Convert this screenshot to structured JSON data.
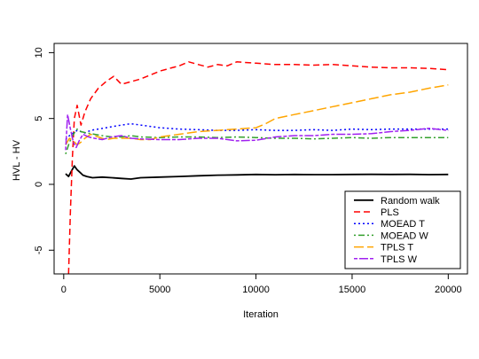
{
  "chart_data": {
    "type": "line",
    "title": "",
    "xlabel": "Iteration",
    "ylabel": "HVL - HV",
    "xlim": [
      -500,
      21000
    ],
    "ylim": [
      -6.8,
      10.7
    ],
    "x_ticks": [
      0,
      5000,
      10000,
      15000,
      20000
    ],
    "y_ticks": [
      -5,
      0,
      5,
      10
    ],
    "legend_position": "bottom-right",
    "series": [
      {
        "name": "Random walk",
        "color": "#000000",
        "dash": "solid",
        "x": [
          100,
          250,
          400,
          550,
          700,
          850,
          1000,
          1200,
          1500,
          2000,
          2500,
          3000,
          3500,
          4000,
          5000,
          6000,
          7000,
          8000,
          9000,
          10000,
          11000,
          12000,
          13000,
          14000,
          15000,
          16000,
          17000,
          18000,
          19000,
          20000
        ],
        "y": [
          0.8,
          0.6,
          1.0,
          1.4,
          1.1,
          0.9,
          0.7,
          0.6,
          0.5,
          0.55,
          0.5,
          0.45,
          0.4,
          0.5,
          0.55,
          0.6,
          0.65,
          0.7,
          0.72,
          0.75,
          0.73,
          0.75,
          0.74,
          0.74,
          0.75,
          0.76,
          0.75,
          0.76,
          0.74,
          0.75
        ]
      },
      {
        "name": "PLS",
        "color": "#ff0000",
        "dash": "dashed",
        "x": [
          250,
          350,
          450,
          550,
          700,
          900,
          1100,
          1400,
          1800,
          2200,
          2600,
          3000,
          3500,
          4000,
          4500,
          5000,
          5500,
          6000,
          6500,
          7000,
          7500,
          8000,
          8500,
          9000,
          10000,
          11000,
          12000,
          13000,
          14000,
          15000,
          16000,
          17000,
          18000,
          19000,
          20000
        ],
        "y": [
          -6.8,
          -2.0,
          2.0,
          5.0,
          6.0,
          4.5,
          5.5,
          6.5,
          7.3,
          7.8,
          8.2,
          7.6,
          7.8,
          8.0,
          8.3,
          8.6,
          8.8,
          9.0,
          9.3,
          9.1,
          8.9,
          9.1,
          9.0,
          9.3,
          9.2,
          9.1,
          9.1,
          9.05,
          9.1,
          9.0,
          8.9,
          8.85,
          8.85,
          8.8,
          8.7
        ]
      },
      {
        "name": "MOEAD T",
        "color": "#0000ff",
        "dash": "dotted",
        "x": [
          100,
          300,
          500,
          700,
          900,
          1100,
          1400,
          1800,
          2200,
          2600,
          3000,
          3500,
          4000,
          5000,
          6000,
          7000,
          8000,
          9000,
          10000,
          11000,
          12000,
          13000,
          14000,
          15000,
          16000,
          17000,
          18000,
          19000,
          20000
        ],
        "y": [
          3.4,
          3.7,
          3.9,
          4.1,
          4.0,
          3.9,
          4.1,
          4.2,
          4.3,
          4.4,
          4.5,
          4.6,
          4.5,
          4.3,
          4.2,
          4.15,
          4.1,
          4.1,
          4.15,
          4.1,
          4.1,
          4.15,
          4.1,
          4.2,
          4.15,
          4.2,
          4.2,
          4.2,
          4.2
        ]
      },
      {
        "name": "MOEAD W",
        "color": "#33a02c",
        "dash": "dotdash",
        "x": [
          100,
          300,
          500,
          700,
          900,
          1200,
          1600,
          2000,
          2500,
          3000,
          3500,
          4000,
          5000,
          6000,
          7000,
          8000,
          9000,
          10000,
          11000,
          12000,
          13000,
          14000,
          15000,
          16000,
          17000,
          18000,
          19000,
          20000
        ],
        "y": [
          2.3,
          3.2,
          3.8,
          4.2,
          4.0,
          3.9,
          3.8,
          3.7,
          3.6,
          3.6,
          3.7,
          3.6,
          3.55,
          3.6,
          3.6,
          3.55,
          3.6,
          3.55,
          3.5,
          3.5,
          3.45,
          3.5,
          3.55,
          3.5,
          3.55,
          3.55,
          3.55,
          3.55
        ]
      },
      {
        "name": "TPLS T",
        "color": "#ffa500",
        "dash": "longdash",
        "x": [
          100,
          300,
          500,
          700,
          900,
          1100,
          1400,
          1800,
          2200,
          2600,
          3000,
          3500,
          4000,
          4500,
          5000,
          5500,
          6000,
          6500,
          7000,
          7500,
          8000,
          8500,
          9000,
          9500,
          10000,
          10500,
          11000,
          12000,
          13000,
          14000,
          15000,
          16000,
          17000,
          18000,
          19000,
          20000
        ],
        "y": [
          3.0,
          3.5,
          3.3,
          3.0,
          3.2,
          3.5,
          3.8,
          3.6,
          3.4,
          3.5,
          3.5,
          3.5,
          3.4,
          3.4,
          3.6,
          3.7,
          3.8,
          3.9,
          4.0,
          4.05,
          4.1,
          4.15,
          4.2,
          4.25,
          4.3,
          4.6,
          5.0,
          5.3,
          5.6,
          5.9,
          6.2,
          6.5,
          6.8,
          7.0,
          7.3,
          7.55
        ]
      },
      {
        "name": "TPLS W",
        "color": "#a020f0",
        "dash": "twodash",
        "x": [
          100,
          200,
          350,
          500,
          650,
          800,
          1000,
          1300,
          1600,
          2000,
          2500,
          3000,
          3500,
          4000,
          5000,
          6000,
          7000,
          8000,
          9000,
          10000,
          11000,
          12000,
          13000,
          14000,
          15000,
          16000,
          17000,
          18000,
          19000,
          20000
        ],
        "y": [
          2.6,
          5.3,
          4.2,
          3.2,
          2.8,
          3.3,
          3.8,
          3.6,
          3.5,
          3.4,
          3.6,
          3.7,
          3.5,
          3.45,
          3.4,
          3.4,
          3.5,
          3.5,
          3.3,
          3.35,
          3.6,
          3.7,
          3.7,
          3.8,
          3.8,
          3.85,
          4.0,
          4.1,
          4.25,
          4.1
        ]
      }
    ]
  }
}
